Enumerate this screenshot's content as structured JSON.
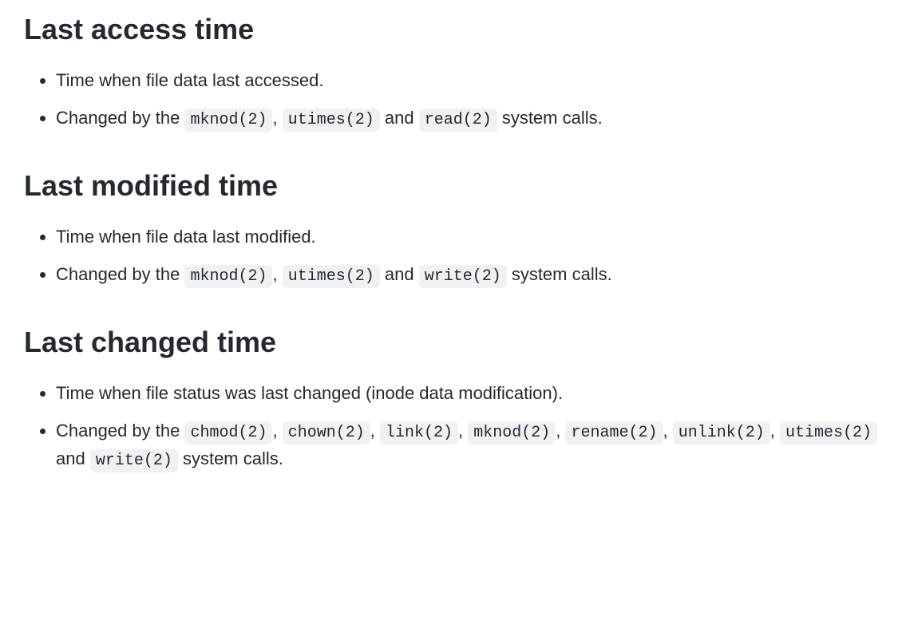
{
  "colors": {
    "text": "#24292f",
    "background": "#ffffff",
    "code_bg": "#eff1f3"
  },
  "typography": {
    "heading_fontsize": 36,
    "heading_weight": 700,
    "body_fontsize": 22,
    "code_fontsize": 20,
    "body_font": "-apple-system, BlinkMacSystemFont, Segoe UI, Helvetica, Arial, sans-serif",
    "code_font": "ui-monospace, SFMono-Regular, SF Mono, Menlo, Consolas, Liberation Mono, monospace"
  },
  "sections": [
    {
      "heading": "Last access time",
      "bullets": [
        {
          "plain": "Time when file data last accessed."
        },
        {
          "prefix": "Changed by the ",
          "codes": [
            "mknod(2)",
            "utimes(2)",
            "read(2)"
          ],
          "separators": [
            ", ",
            " and "
          ],
          "suffix": " system calls."
        }
      ]
    },
    {
      "heading": "Last modified time",
      "bullets": [
        {
          "plain": "Time when file data last modified."
        },
        {
          "prefix": "Changed by the ",
          "codes": [
            "mknod(2)",
            "utimes(2)",
            "write(2)"
          ],
          "separators": [
            ", ",
            " and "
          ],
          "suffix": " system calls."
        }
      ]
    },
    {
      "heading": "Last changed time",
      "bullets": [
        {
          "plain": "Time when file status was last changed (inode data modification)."
        },
        {
          "prefix": "Changed by the ",
          "codes": [
            "chmod(2)",
            "chown(2)",
            "link(2)",
            "mknod(2)",
            "rename(2)",
            "unlink(2)",
            "utimes(2)",
            "write(2)"
          ],
          "separators": [
            ", ",
            ", ",
            ", ",
            ", ",
            ", ",
            ", ",
            " and "
          ],
          "suffix": " system calls."
        }
      ]
    }
  ]
}
